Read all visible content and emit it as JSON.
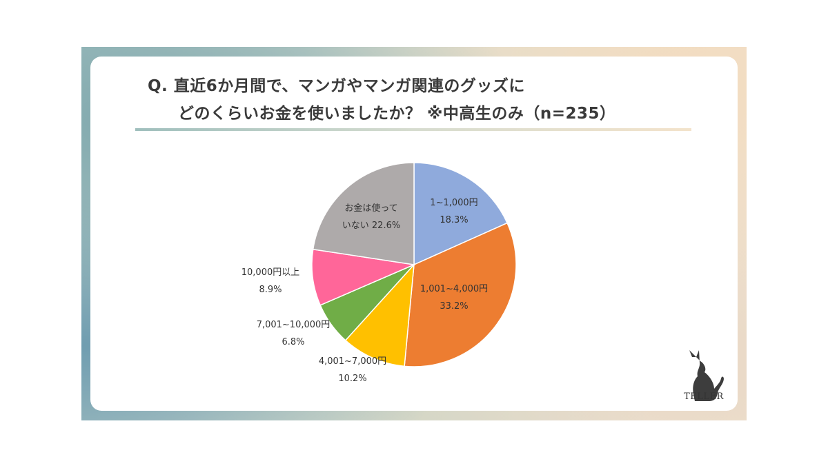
{
  "title": {
    "line1": "Q. 直近6か月間で、マンガやマンガ関連のグッズに",
    "line2": "どのくらいお金を使いましたか？ ※中高生のみ（n=235）"
  },
  "chart_data": {
    "type": "pie",
    "n": 235,
    "slices": [
      {
        "label_lines": [
          "1~1,000円",
          "18.3%"
        ],
        "value": 18.3,
        "color": "#8faadc"
      },
      {
        "label_lines": [
          "1,001~4,000円",
          "33.2%"
        ],
        "value": 33.2,
        "color": "#ed7d31"
      },
      {
        "label_lines": [
          "4,001~7,000円",
          "10.2%"
        ],
        "value": 10.2,
        "color": "#ffc000"
      },
      {
        "label_lines": [
          "7,001~10,000円",
          "6.8%"
        ],
        "value": 6.8,
        "color": "#70ad47"
      },
      {
        "label_lines": [
          "10,000円以上",
          "8.9%"
        ],
        "value": 8.9,
        "color": "#ff6699"
      },
      {
        "label_lines": [
          "お金は使って",
          "いない 22.6%"
        ],
        "value": 22.6,
        "color": "#aeaaaa"
      }
    ],
    "start": "12 o'clock",
    "direction": "clockwise"
  },
  "logo": {
    "text": "TELLER",
    "icon": "cat-silhouette-icon"
  }
}
